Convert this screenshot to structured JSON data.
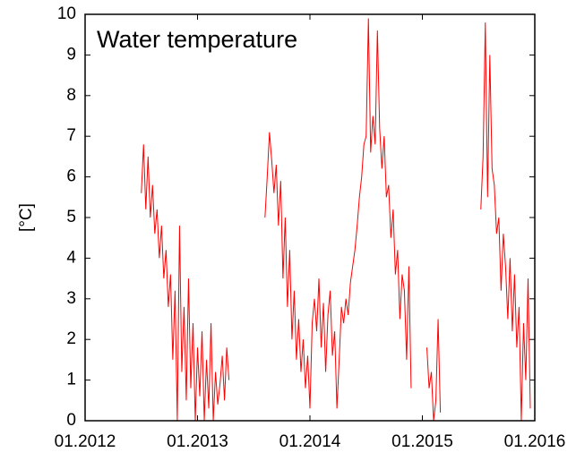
{
  "chart_data": {
    "type": "line",
    "title": "Water temperature",
    "y_label": "[°C]",
    "color": "#ff0000",
    "xlim": [
      2012,
      2016
    ],
    "xticks": [
      {
        "value": 2012,
        "label": "01.2012"
      },
      {
        "value": 2013,
        "label": "01.2013"
      },
      {
        "value": 2014,
        "label": "01.2014"
      },
      {
        "value": 2015,
        "label": "01.2015"
      },
      {
        "value": 2016,
        "label": "01.2016"
      }
    ],
    "ylim": [
      0,
      10
    ],
    "yticks": [
      0,
      1,
      2,
      3,
      4,
      5,
      6,
      7,
      8,
      9,
      10
    ],
    "grid": false,
    "x": [
      2012.5,
      2012.52,
      2012.54,
      2012.56,
      2012.58,
      2012.6,
      2012.62,
      2012.64,
      2012.66,
      2012.68,
      2012.7,
      2012.72,
      2012.74,
      2012.76,
      2012.78,
      2012.8,
      2012.82,
      2012.84,
      2012.86,
      2012.88,
      2012.9,
      2012.92,
      2012.94,
      2012.96,
      2012.98,
      2013.0,
      2013.02,
      2013.04,
      2013.06,
      2013.08,
      2013.1,
      2013.12,
      2013.14,
      2013.16,
      2013.18,
      2013.2,
      2013.22,
      2013.24,
      2013.26,
      2013.28,
      2013.45,
      2013.6,
      2013.62,
      2013.64,
      2013.66,
      2013.68,
      2013.7,
      2013.72,
      2013.74,
      2013.76,
      2013.78,
      2013.8,
      2013.82,
      2013.84,
      2013.86,
      2013.88,
      2013.9,
      2013.92,
      2013.94,
      2013.96,
      2013.98,
      2014.0,
      2014.02,
      2014.04,
      2014.06,
      2014.08,
      2014.1,
      2014.12,
      2014.14,
      2014.16,
      2014.18,
      2014.2,
      2014.22,
      2014.24,
      2014.26,
      2014.28,
      2014.3,
      2014.32,
      2014.34,
      2014.36,
      2014.38,
      2014.4,
      2014.42,
      2014.44,
      2014.46,
      2014.48,
      2014.5,
      2014.52,
      2014.54,
      2014.56,
      2014.58,
      2014.6,
      2014.62,
      2014.64,
      2014.66,
      2014.68,
      2014.7,
      2014.72,
      2014.74,
      2014.76,
      2014.78,
      2014.8,
      2014.82,
      2014.84,
      2014.86,
      2014.88,
      2014.9,
      2014.98,
      2015.04,
      2015.06,
      2015.08,
      2015.1,
      2015.12,
      2015.14,
      2015.16,
      2015.35,
      2015.52,
      2015.54,
      2015.56,
      2015.58,
      2015.6,
      2015.62,
      2015.64,
      2015.66,
      2015.68,
      2015.7,
      2015.72,
      2015.74,
      2015.76,
      2015.78,
      2015.8,
      2015.82,
      2015.84,
      2015.86,
      2015.88,
      2015.9,
      2015.92,
      2015.94,
      2015.96
    ],
    "values": [
      5.6,
      6.8,
      5.2,
      6.5,
      5.0,
      5.8,
      4.6,
      5.2,
      4.0,
      4.8,
      3.5,
      4.2,
      2.8,
      3.6,
      1.5,
      3.2,
      0.0,
      4.8,
      1.2,
      2.8,
      0.5,
      3.5,
      0.8,
      2.4,
      0.0,
      1.8,
      0.6,
      2.2,
      0.0,
      1.5,
      0.3,
      2.4,
      0.0,
      1.2,
      0.4,
      0.9,
      1.6,
      0.5,
      1.8,
      1.0,
      null,
      5.0,
      6.0,
      7.1,
      6.4,
      5.6,
      6.3,
      4.8,
      5.9,
      3.5,
      5.0,
      2.8,
      4.2,
      2.0,
      3.2,
      1.5,
      2.5,
      1.2,
      2.0,
      0.8,
      1.6,
      0.3,
      2.4,
      3.0,
      2.2,
      3.5,
      1.8,
      2.9,
      1.2,
      2.6,
      3.2,
      1.6,
      2.2,
      0.3,
      1.5,
      2.8,
      2.4,
      3.0,
      2.6,
      3.4,
      3.8,
      4.2,
      4.8,
      5.5,
      6.0,
      6.8,
      7.0,
      9.9,
      6.6,
      7.5,
      6.8,
      9.6,
      7.2,
      6.2,
      7.0,
      5.5,
      5.8,
      4.5,
      5.2,
      3.6,
      4.2,
      2.5,
      3.6,
      3.2,
      1.5,
      3.8,
      0.8,
      null,
      1.8,
      0.8,
      1.2,
      0.0,
      0.5,
      2.5,
      0.2,
      null,
      5.2,
      6.5,
      9.8,
      5.5,
      9.0,
      6.2,
      5.8,
      4.6,
      5.0,
      3.2,
      4.6,
      3.8,
      2.5,
      4.0,
      2.2,
      3.6,
      1.8,
      2.8,
      0.0,
      2.4,
      1.0,
      3.5,
      0.3
    ]
  }
}
